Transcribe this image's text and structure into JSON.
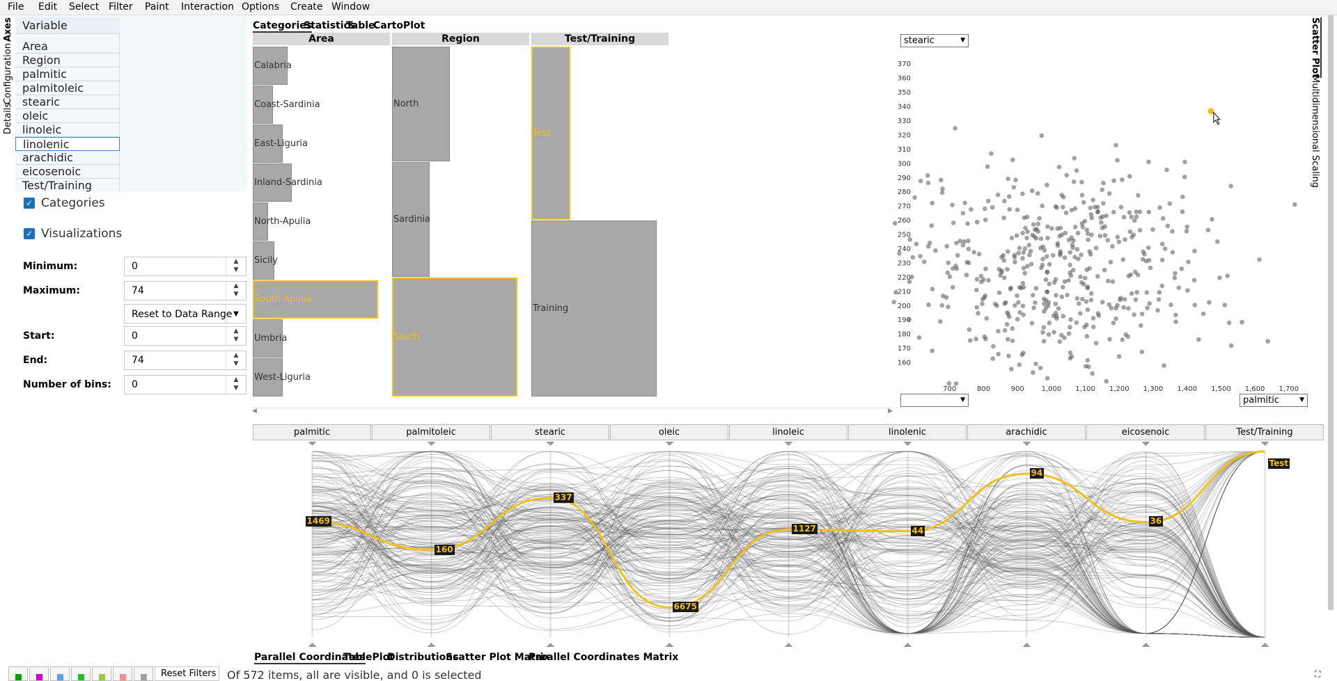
{
  "menu": [
    "File",
    "Edit",
    "Select",
    "Filter",
    "Paint",
    "Interaction",
    "Options",
    "Create",
    "Window"
  ],
  "left_tabs": {
    "axes": "Axes",
    "config": "Configuration",
    "details": "Details"
  },
  "variables": {
    "header": "Variable",
    "items": [
      "Area",
      "Region",
      "palmitic",
      "palmitoleic",
      "stearic",
      "oleic",
      "linoleic",
      "linolenic",
      "arachidic",
      "eicosenoic",
      "Test/Training"
    ],
    "selected": "linolenic"
  },
  "options": {
    "categories": "Categories",
    "visualizations": "Visualizations"
  },
  "fields": {
    "minimum_label": "Minimum:",
    "minimum": "0",
    "maximum_label": "Maximum:",
    "maximum": "74",
    "reset": "Reset to Data Range",
    "start_label": "Start:",
    "start": "0",
    "end_label": "End:",
    "end": "74",
    "bins_label": "Number of bins:",
    "bins": "0"
  },
  "top_tabs": [
    "Categories",
    "Statistics",
    "Table",
    "CartoPlot"
  ],
  "categories": {
    "area": {
      "header": "Area",
      "items": [
        {
          "label": "Calabria",
          "v": 0.28
        },
        {
          "label": "Coast-Sardinia",
          "v": 0.16
        },
        {
          "label": "East-Liguria",
          "v": 0.24
        },
        {
          "label": "Inland-Sardinia",
          "v": 0.31
        },
        {
          "label": "North-Apulia",
          "v": 0.12
        },
        {
          "label": "Sicily",
          "v": 0.17
        },
        {
          "label": "South-Apulia",
          "v": 1.0,
          "selected": true
        },
        {
          "label": "Umbria",
          "v": 0.24
        },
        {
          "label": "West-Liguria",
          "v": 0.24
        }
      ]
    },
    "region": {
      "header": "Region",
      "items": [
        {
          "label": "North",
          "v": 0.46
        },
        {
          "label": "Sardinia",
          "v": 0.3
        },
        {
          "label": "South",
          "v": 1.0,
          "selected": true
        }
      ]
    },
    "test": {
      "header": "Test/Training",
      "items": [
        {
          "label": "Test",
          "v": 0.31,
          "selected": true
        },
        {
          "label": "Training",
          "v": 1.0
        }
      ]
    }
  },
  "scatter": {
    "y_select": "stearic",
    "x_select": "palmitic",
    "x_ticks": [
      "700",
      "800",
      "900",
      "1,000",
      "1,100",
      "1,200",
      "1,300",
      "1,400",
      "1,500",
      "1,600",
      "1,700"
    ],
    "y_ticks": [
      "370",
      "360",
      "350",
      "340",
      "330",
      "320",
      "310",
      "300",
      "290",
      "280",
      "270",
      "260",
      "250",
      "240",
      "230",
      "220",
      "210",
      "200",
      "190",
      "180",
      "170",
      "160"
    ],
    "highlight": {
      "x": 1470,
      "y": 337
    }
  },
  "right_tabs": {
    "scatter": "Scatter Plot",
    "mds": "Multidimensional Scaling"
  },
  "parcoords": {
    "axes": [
      "palmitic",
      "palmitoleic",
      "stearic",
      "oleic",
      "linoleic",
      "linolenic",
      "arachidic",
      "eicosenoic",
      "Test/Training"
    ],
    "values": [
      "1469",
      "160",
      "337",
      "6675",
      "1127",
      "44",
      "94",
      "36",
      "Test"
    ],
    "positions": [
      0.38,
      0.53,
      0.25,
      0.84,
      0.42,
      0.43,
      0.12,
      0.38,
      0.0
    ]
  },
  "bottom_tabs": [
    "Parallel Coordinates",
    "TablePlot",
    "Distributions",
    "Scatter Plot Matrix",
    "Parallel Coordinates Matrix"
  ],
  "footer": {
    "reset": "Reset Filters",
    "status": "Of 572 items, all are visible, and 0 is selected",
    "colors": [
      "#00a000",
      "#d000d0",
      "#60a0e0",
      "#20c020",
      "#90d040",
      "#f09090",
      "#a0a0a0"
    ]
  }
}
